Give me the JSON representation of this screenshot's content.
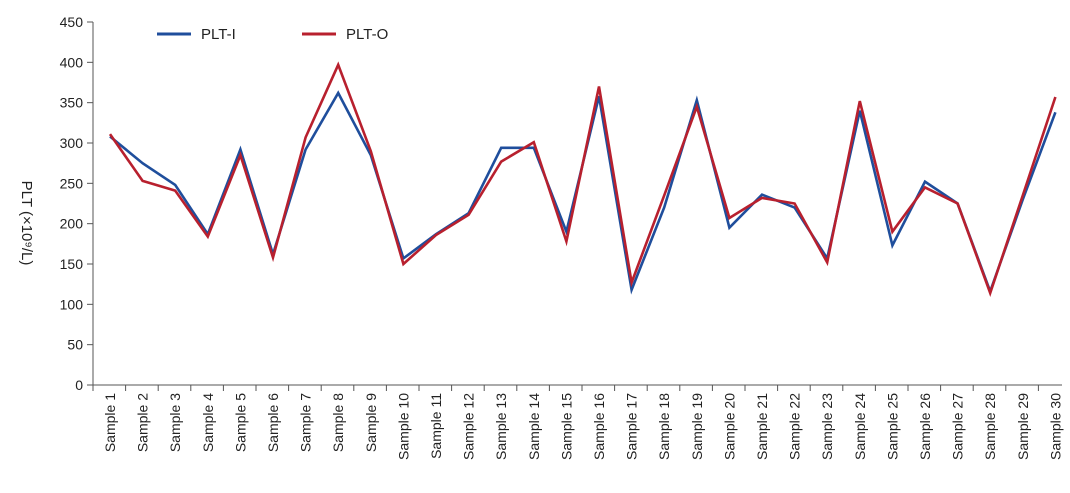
{
  "chart_data": {
    "type": "line",
    "title": "",
    "xlabel": "",
    "ylabel": "PLT (×10⁹/L)",
    "ylim": [
      0,
      450
    ],
    "yticks": [
      0,
      50,
      100,
      150,
      200,
      250,
      300,
      350,
      400,
      450
    ],
    "grid": false,
    "legend_position": "top-left",
    "categories": [
      "Sample 1",
      "Sample 2",
      "Sample 3",
      "Sample 4",
      "Sample 5",
      "Sample 6",
      "Sample 7",
      "Sample 8",
      "Sample 9",
      "Sample 10",
      "Sample 11",
      "Sample 12",
      "Sample 13",
      "Sample 14",
      "Sample 15",
      "Sample 16",
      "Sample 17",
      "Sample 18",
      "Sample 19",
      "Sample 20",
      "Sample 21",
      "Sample 22",
      "Sample 23",
      "Sample 24",
      "Sample 25",
      "Sample 26",
      "Sample 27",
      "Sample 28",
      "Sample 29",
      "Sample 30"
    ],
    "series": [
      {
        "name": "PLT-I",
        "color": "#1f4e9c",
        "values": [
          308,
          275,
          248,
          187,
          292,
          162,
          292,
          362,
          285,
          157,
          187,
          213,
          294,
          294,
          190,
          358,
          118,
          220,
          353,
          195,
          236,
          220,
          157,
          340,
          173,
          252,
          225,
          116,
          230,
          338
        ]
      },
      {
        "name": "PLT-O",
        "color": "#b8202e",
        "values": [
          311,
          253,
          241,
          184,
          285,
          158,
          307,
          397,
          290,
          150,
          186,
          211,
          277,
          301,
          178,
          370,
          127,
          235,
          345,
          207,
          232,
          225,
          152,
          352,
          190,
          245,
          225,
          114,
          235,
          357
        ]
      }
    ]
  }
}
